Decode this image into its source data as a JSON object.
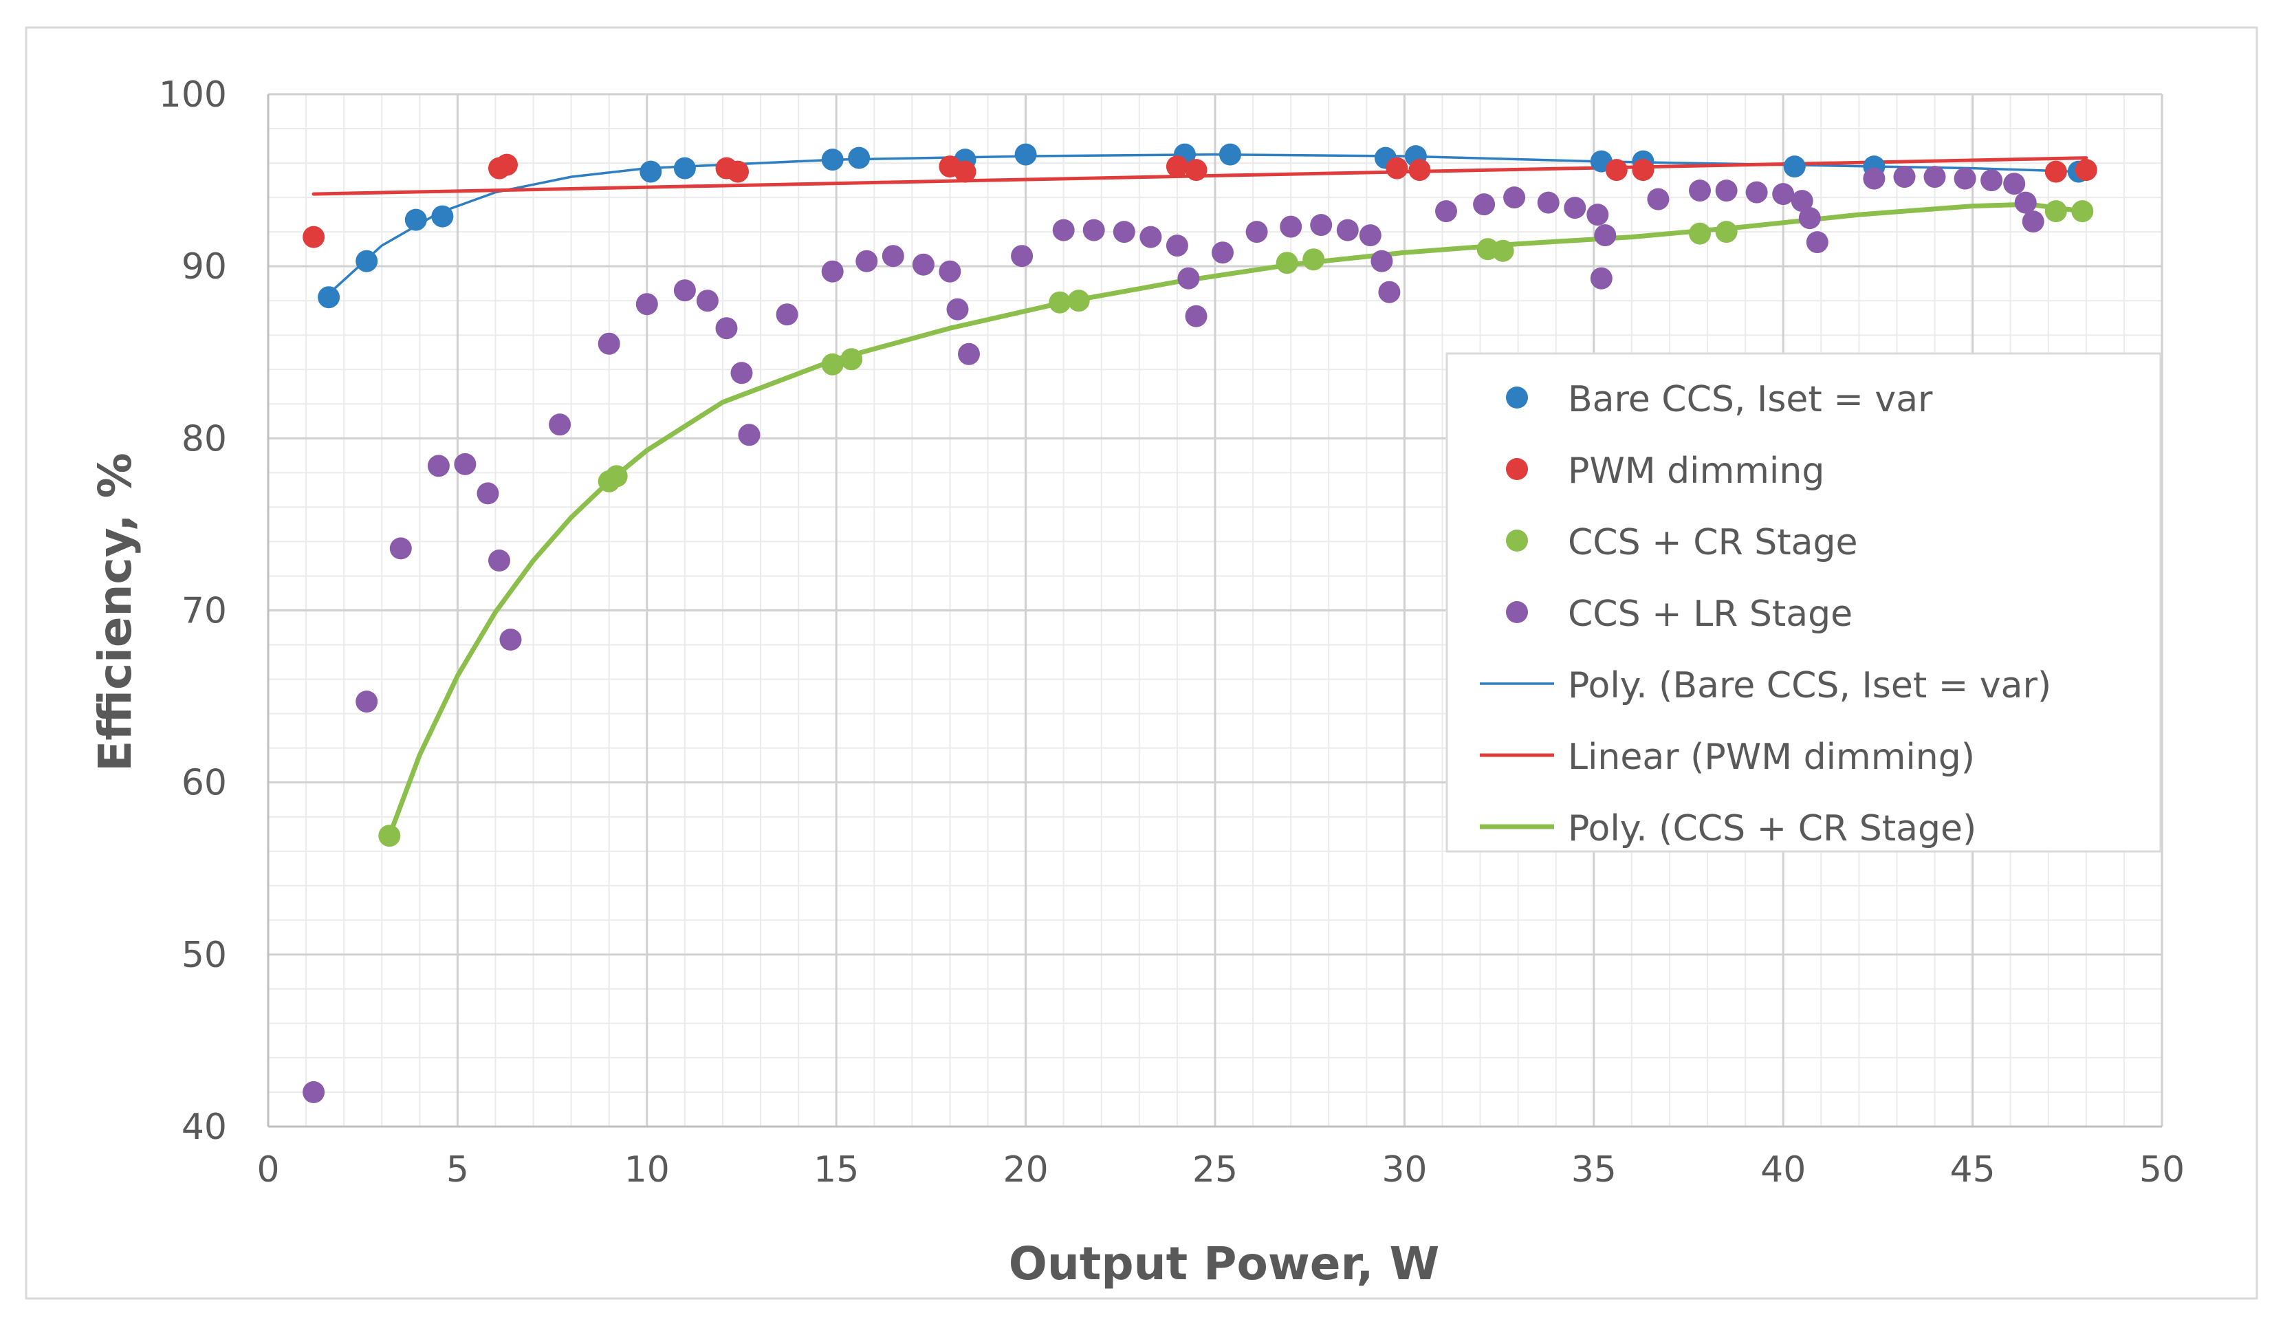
{
  "chart_data": {
    "type": "scatter",
    "title": "",
    "xlabel": "Output Power, W",
    "ylabel": "Efficiency, %",
    "xlim": [
      0,
      50
    ],
    "ylim": [
      40,
      100
    ],
    "x_ticks": [
      0,
      5,
      10,
      15,
      20,
      25,
      30,
      35,
      40,
      45,
      50
    ],
    "y_ticks": [
      40,
      50,
      60,
      70,
      80,
      90,
      100
    ],
    "grid": true,
    "legend_position": "right-center",
    "series": [
      {
        "name": "Bare CCS, Iset = var",
        "kind": "markers",
        "color": "#2E7EC2",
        "points": [
          [
            1.6,
            88.2
          ],
          [
            2.6,
            90.3
          ],
          [
            3.9,
            92.7
          ],
          [
            4.6,
            92.9
          ],
          [
            10.1,
            95.5
          ],
          [
            11.0,
            95.7
          ],
          [
            14.9,
            96.2
          ],
          [
            15.6,
            96.3
          ],
          [
            18.4,
            96.2
          ],
          [
            20.0,
            96.5
          ],
          [
            24.2,
            96.5
          ],
          [
            25.4,
            96.5
          ],
          [
            29.5,
            96.3
          ],
          [
            30.3,
            96.4
          ],
          [
            35.2,
            96.1
          ],
          [
            36.3,
            96.1
          ],
          [
            40.3,
            95.8
          ],
          [
            42.4,
            95.8
          ],
          [
            47.8,
            95.5
          ]
        ]
      },
      {
        "name": "PWM dimming",
        "kind": "markers",
        "color": "#E03C3C",
        "points": [
          [
            1.2,
            91.7
          ],
          [
            6.1,
            95.7
          ],
          [
            6.3,
            95.9
          ],
          [
            12.1,
            95.7
          ],
          [
            12.4,
            95.5
          ],
          [
            18.0,
            95.8
          ],
          [
            18.4,
            95.5
          ],
          [
            24.0,
            95.8
          ],
          [
            24.5,
            95.6
          ],
          [
            29.8,
            95.7
          ],
          [
            30.4,
            95.6
          ],
          [
            35.6,
            95.6
          ],
          [
            36.3,
            95.6
          ],
          [
            47.2,
            95.5
          ],
          [
            48.0,
            95.6
          ]
        ]
      },
      {
        "name": "CCS + CR Stage",
        "kind": "markers",
        "color": "#8BBE4A",
        "points": [
          [
            3.2,
            56.9
          ],
          [
            9.0,
            77.5
          ],
          [
            9.2,
            77.8
          ],
          [
            14.9,
            84.3
          ],
          [
            15.4,
            84.6
          ],
          [
            20.9,
            87.9
          ],
          [
            21.4,
            88.0
          ],
          [
            26.9,
            90.2
          ],
          [
            27.6,
            90.4
          ],
          [
            32.2,
            91.0
          ],
          [
            32.6,
            90.9
          ],
          [
            37.8,
            91.9
          ],
          [
            38.5,
            92.0
          ],
          [
            47.2,
            93.2
          ],
          [
            47.9,
            93.2
          ]
        ]
      },
      {
        "name": "CCS + LR Stage",
        "kind": "markers",
        "color": "#8A5BAB",
        "points": [
          [
            1.2,
            42.0
          ],
          [
            2.6,
            64.7
          ],
          [
            3.5,
            73.6
          ],
          [
            4.5,
            78.4
          ],
          [
            5.2,
            78.5
          ],
          [
            5.8,
            76.8
          ],
          [
            6.1,
            72.9
          ],
          [
            6.4,
            68.3
          ],
          [
            7.7,
            80.8
          ],
          [
            9.0,
            85.5
          ],
          [
            10.0,
            87.8
          ],
          [
            11.0,
            88.6
          ],
          [
            11.6,
            88.0
          ],
          [
            12.1,
            86.4
          ],
          [
            12.5,
            83.8
          ],
          [
            12.7,
            80.2
          ],
          [
            13.7,
            87.2
          ],
          [
            14.9,
            89.7
          ],
          [
            15.8,
            90.3
          ],
          [
            16.5,
            90.6
          ],
          [
            17.3,
            90.1
          ],
          [
            18.0,
            89.7
          ],
          [
            18.2,
            87.5
          ],
          [
            18.5,
            84.9
          ],
          [
            19.9,
            90.6
          ],
          [
            21.0,
            92.1
          ],
          [
            21.8,
            92.1
          ],
          [
            22.6,
            92.0
          ],
          [
            23.3,
            91.7
          ],
          [
            24.0,
            91.2
          ],
          [
            24.3,
            89.3
          ],
          [
            24.5,
            87.1
          ],
          [
            25.2,
            90.8
          ],
          [
            26.1,
            92.0
          ],
          [
            27.0,
            92.3
          ],
          [
            27.8,
            92.4
          ],
          [
            28.5,
            92.1
          ],
          [
            29.1,
            91.8
          ],
          [
            29.4,
            90.3
          ],
          [
            29.6,
            88.5
          ],
          [
            31.1,
            93.2
          ],
          [
            32.1,
            93.6
          ],
          [
            32.9,
            94.0
          ],
          [
            33.8,
            93.7
          ],
          [
            34.5,
            93.4
          ],
          [
            35.1,
            93.0
          ],
          [
            35.3,
            91.8
          ],
          [
            35.2,
            89.3
          ],
          [
            36.7,
            93.9
          ],
          [
            37.8,
            94.4
          ],
          [
            38.5,
            94.4
          ],
          [
            39.3,
            94.3
          ],
          [
            40.0,
            94.2
          ],
          [
            40.5,
            93.8
          ],
          [
            40.7,
            92.8
          ],
          [
            40.9,
            91.4
          ],
          [
            42.4,
            95.1
          ],
          [
            43.2,
            95.2
          ],
          [
            44.0,
            95.2
          ],
          [
            44.8,
            95.1
          ],
          [
            45.5,
            95.0
          ],
          [
            46.1,
            94.8
          ],
          [
            46.4,
            93.7
          ],
          [
            46.6,
            92.6
          ]
        ]
      },
      {
        "name": "Poly. (Bare CCS, Iset = var)",
        "kind": "trendline",
        "color": "#2E7EC2",
        "points": [
          [
            1.6,
            88.4
          ],
          [
            3.0,
            91.2
          ],
          [
            4.5,
            93.1
          ],
          [
            6.0,
            94.3
          ],
          [
            8.0,
            95.2
          ],
          [
            10.0,
            95.7
          ],
          [
            15.0,
            96.2
          ],
          [
            20.0,
            96.4
          ],
          [
            25.0,
            96.5
          ],
          [
            30.0,
            96.4
          ],
          [
            35.0,
            96.1
          ],
          [
            40.0,
            95.9
          ],
          [
            45.0,
            95.7
          ],
          [
            47.8,
            95.5
          ]
        ]
      },
      {
        "name": "Linear (PWM dimming)",
        "kind": "trendline",
        "color": "#E03C3C",
        "points": [
          [
            1.2,
            94.2
          ],
          [
            48.0,
            96.3
          ]
        ]
      },
      {
        "name": "Poly. (CCS + CR Stage)",
        "kind": "trendline",
        "color": "#8BBE4A",
        "points": [
          [
            3.2,
            56.9
          ],
          [
            4.0,
            61.6
          ],
          [
            5.0,
            66.2
          ],
          [
            6.0,
            69.9
          ],
          [
            7.0,
            72.9
          ],
          [
            8.0,
            75.4
          ],
          [
            9.0,
            77.5
          ],
          [
            10.0,
            79.3
          ],
          [
            12.0,
            82.1
          ],
          [
            15.0,
            84.6
          ],
          [
            18.0,
            86.4
          ],
          [
            21.0,
            87.9
          ],
          [
            24.0,
            89.1
          ],
          [
            27.0,
            90.1
          ],
          [
            30.0,
            90.8
          ],
          [
            33.0,
            91.3
          ],
          [
            36.0,
            91.7
          ],
          [
            39.0,
            92.3
          ],
          [
            42.0,
            93.0
          ],
          [
            45.0,
            93.5
          ],
          [
            46.5,
            93.6
          ],
          [
            47.9,
            93.2
          ]
        ]
      }
    ]
  }
}
